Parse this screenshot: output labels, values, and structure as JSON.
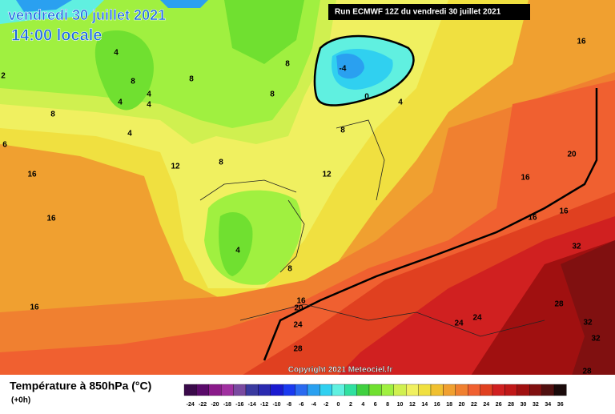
{
  "header": {
    "date": "vendredi 30 juillet 2021",
    "time": "14:00 locale",
    "run": "Run ECMWF 12Z du vendredi 30 juillet 2021"
  },
  "map": {
    "contour_labels": [
      "2",
      "4",
      "8",
      "4",
      "8",
      "4",
      "4",
      "8",
      "4",
      "8",
      "8",
      "-4",
      "0",
      "4",
      "8",
      "12",
      "8",
      "12",
      "16",
      "6",
      "16",
      "4",
      "8",
      "16",
      "20",
      "24",
      "28",
      "16",
      "16",
      "20",
      "16",
      "16",
      "16",
      "32",
      "28",
      "24",
      "24",
      "32",
      "32",
      "28"
    ],
    "copyright": "Copyright 2021 Meteociel.fr"
  },
  "legend": {
    "title": "Température à 850hPa (°C)",
    "subtitle": "(+0h)",
    "labels": [
      "-24",
      "-22",
      "-20",
      "-18",
      "-16",
      "-14",
      "-12",
      "-10",
      "-8",
      "-6",
      "-4",
      "-2",
      "0",
      "2",
      "4",
      "6",
      "8",
      "10",
      "12",
      "14",
      "16",
      "18",
      "20",
      "22",
      "24",
      "26",
      "28",
      "30",
      "32",
      "34",
      "36"
    ],
    "colors": [
      "#3a0a4a",
      "#5a0a6a",
      "#8a1a8a",
      "#a030a0",
      "#7a4aa0",
      "#3a3aa0",
      "#2a2ab0",
      "#1a1ad0",
      "#1a3af0",
      "#2a6af0",
      "#2aa0f0",
      "#30d0f0",
      "#60f0e0",
      "#30e0a0",
      "#40d040",
      "#70e030",
      "#a0f040",
      "#d0f050",
      "#f0f060",
      "#f0e040",
      "#f0c030",
      "#f0a030",
      "#f08030",
      "#f06030",
      "#e04020",
      "#d02020",
      "#c01818",
      "#a01010",
      "#801010",
      "#501010",
      "#1a0a0a"
    ]
  }
}
